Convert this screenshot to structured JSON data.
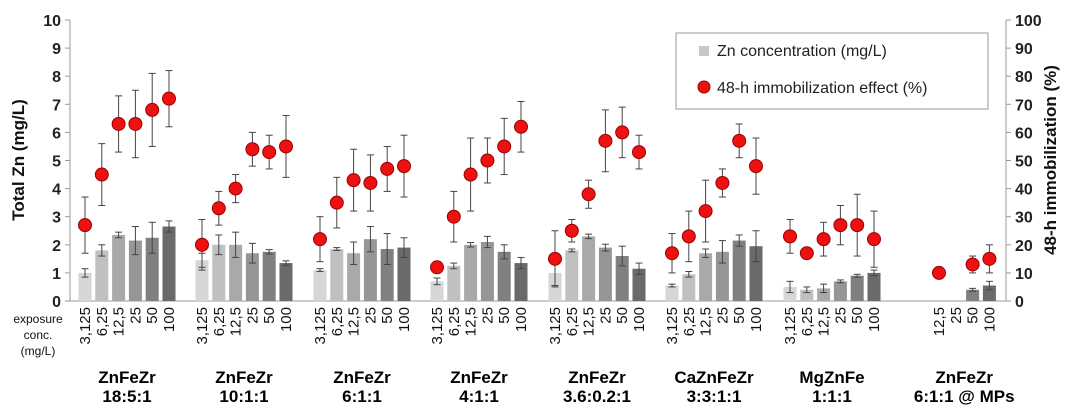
{
  "chart_data": {
    "type": "bar",
    "y_left_label": "Total Zn (mg/L)",
    "y_right_label": "48-h immobilization (%)",
    "ylim_left": [
      0,
      10
    ],
    "ylim_right": [
      0,
      100
    ],
    "y_left_ticks": [
      "0",
      "1",
      "2",
      "3",
      "4",
      "5",
      "6",
      "7",
      "8",
      "9",
      "10"
    ],
    "y_right_ticks": [
      "0",
      "10",
      "20",
      "30",
      "40",
      "50",
      "60",
      "70",
      "80",
      "90",
      "100"
    ],
    "x_axis_side_label": [
      "exposure",
      "conc.",
      "(mg/L)"
    ],
    "legend": {
      "position": "top-right",
      "bar_label": "Zn concentration (mg/L)",
      "dot_label": "48-h immobilization effect (%)"
    },
    "colors": {
      "bar_shades": [
        "#d6d6d6",
        "#c0c0c0",
        "#a9a9a9",
        "#969696",
        "#808080",
        "#6a6a6a"
      ],
      "dot_fill": "#ee1111",
      "dot_stroke": "#990000"
    },
    "groups": [
      {
        "label_line1": "ZnFeZr",
        "label_line2": "18:5:1",
        "categories": [
          "3,125",
          "6,25",
          "12,5",
          "25",
          "50",
          "100"
        ],
        "zn": [
          1.0,
          1.8,
          2.35,
          2.15,
          2.25,
          2.65
        ],
        "zn_err": [
          0.15,
          0.2,
          0.1,
          0.5,
          0.55,
          0.2
        ],
        "immob": [
          27,
          45,
          63,
          63,
          68,
          72
        ],
        "immob_err": [
          10,
          11,
          10,
          12,
          13,
          10
        ]
      },
      {
        "label_line1": "ZnFeZr",
        "label_line2": "10:1:1",
        "categories": [
          "3,125",
          "6,25",
          "12,5",
          "25",
          "50",
          "100"
        ],
        "zn": [
          1.45,
          2.0,
          2.0,
          1.7,
          1.75,
          1.35
        ],
        "zn_err": [
          0.25,
          0.35,
          0.45,
          0.35,
          0.08,
          0.08
        ],
        "immob": [
          20,
          33,
          40,
          54,
          53,
          55
        ],
        "immob_err": [
          9,
          6,
          5,
          6,
          6,
          11
        ]
      },
      {
        "label_line1": "ZnFeZr",
        "label_line2": "6:1:1",
        "categories": [
          "3,125",
          "6,25",
          "12,5",
          "25",
          "50",
          "100"
        ],
        "zn": [
          1.1,
          1.85,
          1.7,
          2.2,
          1.85,
          1.9
        ],
        "zn_err": [
          0.05,
          0.05,
          0.4,
          0.45,
          0.55,
          0.35
        ],
        "immob": [
          22,
          35,
          43,
          42,
          47,
          48
        ],
        "immob_err": [
          8,
          9,
          11,
          10,
          8,
          11
        ]
      },
      {
        "label_line1": "ZnFeZr",
        "label_line2": "4:1:1",
        "categories": [
          "3,125",
          "6,25",
          "12,5",
          "25",
          "50",
          "100"
        ],
        "zn": [
          0.7,
          1.25,
          2.0,
          2.1,
          1.75,
          1.35
        ],
        "zn_err": [
          0.12,
          0.1,
          0.08,
          0.2,
          0.25,
          0.2
        ],
        "immob": [
          12,
          30,
          45,
          50,
          55,
          62
        ],
        "immob_err": [
          2,
          9,
          13,
          8,
          10,
          9
        ]
      },
      {
        "label_line1": "ZnFeZr",
        "label_line2": "3.6:0.2:1",
        "categories": [
          "3,125",
          "6,25",
          "12,5",
          "25",
          "50",
          "100"
        ],
        "zn": [
          1.0,
          1.8,
          2.3,
          1.9,
          1.6,
          1.15
        ],
        "zn_err": [
          0.45,
          0.05,
          0.08,
          0.12,
          0.35,
          0.2
        ],
        "immob": [
          15,
          25,
          38,
          57,
          60,
          53
        ],
        "immob_err": [
          10,
          4,
          5,
          11,
          9,
          6
        ]
      },
      {
        "label_line1": "CaZnFeZr",
        "label_line2": "3:3:1:1",
        "categories": [
          "3,125",
          "6,25",
          "12,5",
          "25",
          "50",
          "100"
        ],
        "zn": [
          0.55,
          0.95,
          1.7,
          1.75,
          2.15,
          1.95
        ],
        "zn_err": [
          0.05,
          0.1,
          0.15,
          0.4,
          0.2,
          0.55
        ],
        "immob": [
          17,
          23,
          32,
          42,
          57,
          48
        ],
        "immob_err": [
          7,
          9,
          11,
          5,
          6,
          10
        ]
      },
      {
        "label_line1": "MgZnFe",
        "label_line2": "1:1:1",
        "categories": [
          "3,125",
          "6,25",
          "12,5",
          "25",
          "50",
          "100"
        ],
        "zn": [
          0.5,
          0.4,
          0.45,
          0.7,
          0.9,
          1.0
        ],
        "zn_err": [
          0.2,
          0.1,
          0.15,
          0.05,
          0.05,
          0.1
        ],
        "immob": [
          23,
          17,
          22,
          27,
          27,
          22
        ],
        "immob_err": [
          6,
          2,
          6,
          7,
          11,
          10
        ]
      },
      {
        "label_line1": "ZnFeZr",
        "label_line2": "6:1:1 @ MPs",
        "categories": [
          "12,5",
          "25",
          "50",
          "100"
        ],
        "zn": [
          0,
          0,
          0.4,
          0.55
        ],
        "zn_err": [
          0,
          0,
          0.05,
          0.15
        ],
        "immob": [
          10,
          null,
          13,
          15
        ],
        "immob_err": [
          2,
          null,
          3,
          5
        ]
      }
    ]
  }
}
